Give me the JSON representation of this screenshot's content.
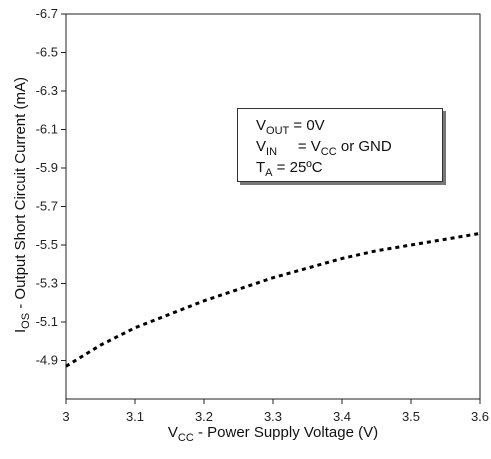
{
  "chart_data": {
    "type": "line",
    "title": "",
    "xlabel": {
      "main": "V",
      "sub": "CC",
      "rest": " - Power Supply Voltage (V)"
    },
    "ylabel": {
      "main": "I",
      "sub": "OS",
      "rest": " - Output Short Circuit Current (mA)"
    },
    "xlim": [
      3,
      3.6
    ],
    "ylim": [
      -4.7,
      -6.7
    ],
    "x_ticks": [
      "3",
      "3.1",
      "3.2",
      "3.3",
      "3.4",
      "3.5",
      "3.6"
    ],
    "y_ticks": [
      "-4.9",
      "-5.1",
      "-5.3",
      "-5.5",
      "-5.7",
      "-5.9",
      "-6.1",
      "-6.3",
      "-6.5",
      "-6.7"
    ],
    "grid": false,
    "series": [
      {
        "line_style": "dotted",
        "color": "#000000",
        "x": [
          3.0,
          3.05,
          3.1,
          3.15,
          3.2,
          3.25,
          3.3,
          3.35,
          3.4,
          3.45,
          3.5,
          3.55,
          3.6
        ],
        "y": [
          -4.87,
          -4.98,
          -5.07,
          -5.14,
          -5.21,
          -5.27,
          -5.33,
          -5.38,
          -5.43,
          -5.47,
          -5.5,
          -5.53,
          -5.56
        ]
      }
    ],
    "annotation": {
      "lines": [
        {
          "main": "V",
          "sub": "OUT",
          "rest": " = 0V"
        },
        {
          "main": "V",
          "sub": "IN",
          "rest": "     = V",
          "sub2": "CC",
          "rest2": " or GND"
        },
        {
          "main": "T",
          "sub": "A",
          "rest": " = 25ºC"
        }
      ]
    }
  }
}
